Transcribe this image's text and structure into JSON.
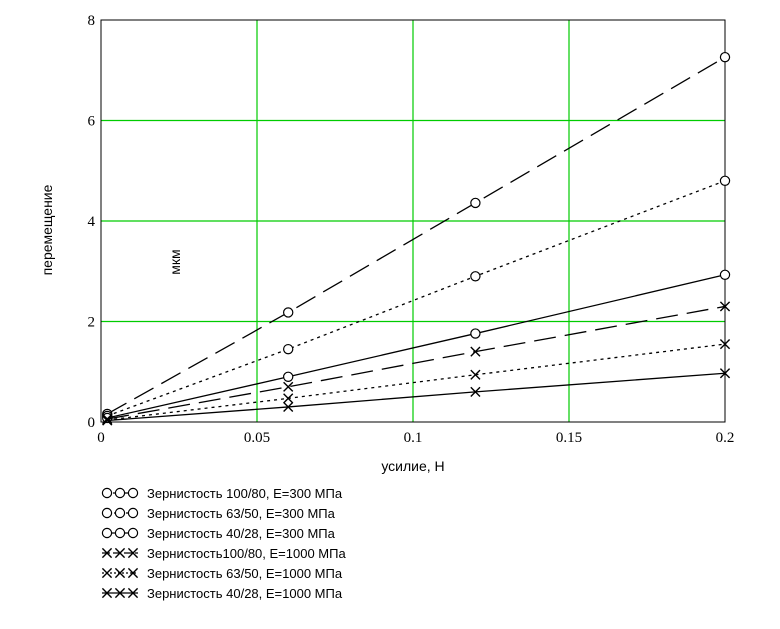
{
  "chart_data": {
    "type": "line",
    "xlabel": "усилие, Н",
    "ylabel": "перемещение",
    "unit_annotation": "мкм",
    "xlim": [
      0,
      0.2
    ],
    "ylim": [
      0,
      8
    ],
    "x_ticks": [
      0,
      0.05,
      0.1,
      0.15,
      0.2
    ],
    "x_tick_labels": [
      "0",
      "0.05",
      "0.1",
      "0.15",
      "0.2"
    ],
    "y_ticks": [
      0,
      2,
      4,
      6,
      8
    ],
    "y_tick_labels": [
      "0",
      "2",
      "4",
      "6",
      "8"
    ],
    "grid": true,
    "grid_color": "#00cc00",
    "legend_position": "bottom-left",
    "series": [
      {
        "name": "Зернистость 100/80, E=300 МПа",
        "x": [
          0.002,
          0.06,
          0.12,
          0.2
        ],
        "values": [
          0.16,
          2.18,
          4.36,
          7.26
        ],
        "line_style": "long-dash",
        "marker": "circle"
      },
      {
        "name": "Зернистость 63/50, E=300 МПа",
        "x": [
          0.002,
          0.06,
          0.12,
          0.2
        ],
        "values": [
          0.12,
          1.45,
          2.9,
          4.8
        ],
        "line_style": "dotted",
        "marker": "circle"
      },
      {
        "name": "Зернистость 40/28, E=300 МПа",
        "x": [
          0.002,
          0.06,
          0.12,
          0.2
        ],
        "values": [
          0.08,
          0.9,
          1.76,
          2.93
        ],
        "line_style": "solid",
        "marker": "circle"
      },
      {
        "name": "Зернистость100/80, E=1000 МПа",
        "x": [
          0.002,
          0.06,
          0.12,
          0.2
        ],
        "values": [
          0.06,
          0.7,
          1.4,
          2.3
        ],
        "line_style": "long-dash",
        "marker": "cross"
      },
      {
        "name": "Зернистость 63/50, E=1000 МПа",
        "x": [
          0.002,
          0.06,
          0.12,
          0.2
        ],
        "values": [
          0.04,
          0.47,
          0.94,
          1.55
        ],
        "line_style": "dotted",
        "marker": "cross"
      },
      {
        "name": "Зернистость 40/28, E=1000 МПа",
        "x": [
          0.002,
          0.06,
          0.12,
          0.2
        ],
        "values": [
          0.03,
          0.3,
          0.6,
          0.97
        ],
        "line_style": "solid",
        "marker": "cross"
      }
    ]
  }
}
